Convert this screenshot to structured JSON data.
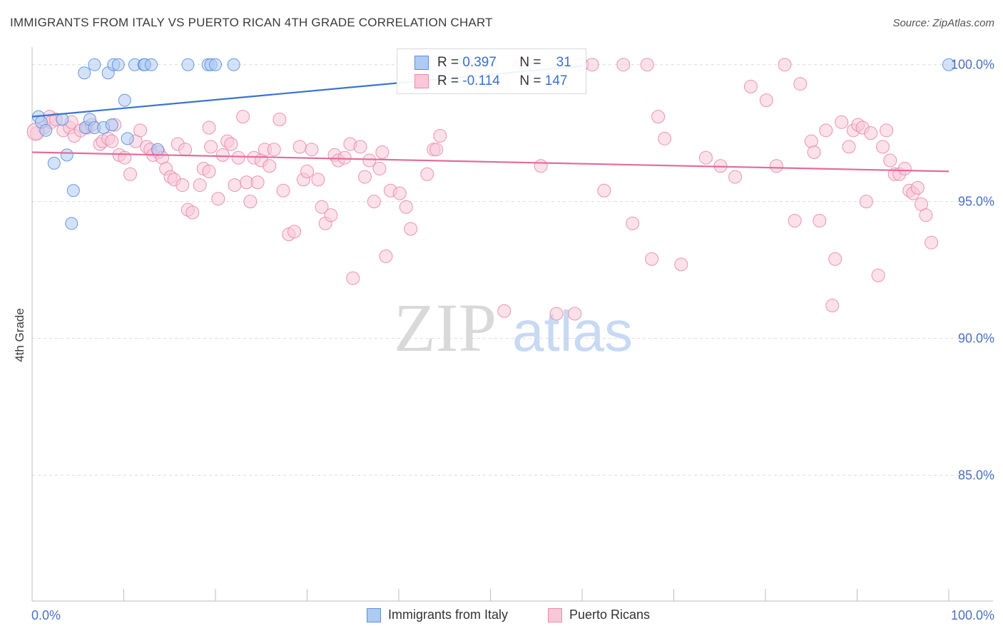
{
  "header": {
    "title": "IMMIGRANTS FROM ITALY VS PUERTO RICAN 4TH GRADE CORRELATION CHART",
    "source": "Source: ZipAtlas.com"
  },
  "watermark": {
    "zip": "ZIP",
    "atlas": "atlas"
  },
  "legend": {
    "rows": [
      {
        "r_label": "R =",
        "r_value": "0.397",
        "n_label": "N =",
        "n_value": "31",
        "fill": "#aecbf3",
        "stroke": "#5b8fe0"
      },
      {
        "r_label": "R =",
        "r_value": "-0.114",
        "n_label": "N =",
        "n_value": "147",
        "fill": "#f8c8d8",
        "stroke": "#e98aa8"
      }
    ]
  },
  "bottom_legend": [
    {
      "label": "Immigrants from Italy",
      "fill": "#aecbf3",
      "stroke": "#5b8fe0"
    },
    {
      "label": "Puerto Ricans",
      "fill": "#f8c8d8",
      "stroke": "#e98aa8"
    }
  ],
  "chart_data": {
    "type": "scatter",
    "xlabel": "",
    "ylabel": "4th Grade",
    "x_tick_labels": [
      "0.0%",
      "100.0%"
    ],
    "y_tick_labels": [
      "100.0%",
      "95.0%",
      "90.0%",
      "85.0%"
    ],
    "y_ticks": [
      100,
      95,
      90,
      85
    ],
    "xlim": [
      0,
      100
    ],
    "ylim": [
      80.4,
      100.8
    ],
    "grid": true,
    "colors": {
      "blue": "#3a74d0",
      "pink": "#e36c99",
      "blue_fill": "#aecbf3",
      "pink_fill": "#f8c8d8"
    },
    "series": [
      {
        "name": "Immigrants from Italy",
        "trend": {
          "x": [
            0,
            60
          ],
          "y": [
            98.1,
            99.95
          ]
        },
        "points": [
          [
            0.7,
            98.1
          ],
          [
            1.0,
            97.9
          ],
          [
            1.5,
            97.6
          ],
          [
            2.4,
            96.4
          ],
          [
            3.3,
            98.0
          ],
          [
            3.8,
            96.7
          ],
          [
            4.5,
            95.4
          ],
          [
            4.3,
            94.2
          ],
          [
            5.8,
            97.7
          ],
          [
            6.3,
            98.0
          ],
          [
            6.8,
            97.7
          ],
          [
            5.7,
            99.7
          ],
          [
            6.8,
            100.0
          ],
          [
            7.8,
            97.7
          ],
          [
            8.3,
            99.7
          ],
          [
            8.7,
            97.8
          ],
          [
            8.9,
            100.0
          ],
          [
            9.4,
            100.0
          ],
          [
            10.1,
            98.7
          ],
          [
            10.4,
            97.3
          ],
          [
            11.2,
            100.0
          ],
          [
            12.2,
            100.0
          ],
          [
            12.3,
            100.0
          ],
          [
            13.0,
            100.0
          ],
          [
            13.7,
            96.9
          ],
          [
            17.0,
            100.0
          ],
          [
            19.2,
            100.0
          ],
          [
            19.5,
            100.0
          ],
          [
            20.0,
            100.0
          ],
          [
            22.0,
            100.0
          ],
          [
            100.0,
            100.0
          ]
        ]
      },
      {
        "name": "Puerto Ricans",
        "trend": {
          "x": [
            0,
            100
          ],
          "y": [
            96.8,
            96.1
          ]
        },
        "points": [
          [
            0.5,
            97.5
          ],
          [
            1.3,
            97.7
          ],
          [
            1.9,
            98.1
          ],
          [
            2.1,
            97.9
          ],
          [
            2.6,
            98.0
          ],
          [
            3.4,
            97.6
          ],
          [
            4.1,
            97.7
          ],
          [
            4.3,
            97.9
          ],
          [
            4.6,
            97.4
          ],
          [
            5.3,
            97.6
          ],
          [
            6.0,
            97.7
          ],
          [
            6.5,
            97.8
          ],
          [
            7.4,
            97.1
          ],
          [
            7.7,
            97.2
          ],
          [
            8.3,
            97.3
          ],
          [
            8.7,
            97.2
          ],
          [
            9.0,
            97.8
          ],
          [
            9.5,
            96.7
          ],
          [
            10.1,
            96.6
          ],
          [
            10.7,
            96.0
          ],
          [
            11.3,
            97.2
          ],
          [
            11.8,
            97.6
          ],
          [
            12.5,
            97.0
          ],
          [
            12.9,
            96.9
          ],
          [
            13.2,
            96.7
          ],
          [
            13.8,
            96.8
          ],
          [
            14.2,
            96.6
          ],
          [
            14.6,
            96.2
          ],
          [
            15.1,
            95.9
          ],
          [
            15.5,
            95.8
          ],
          [
            15.9,
            97.1
          ],
          [
            16.4,
            95.6
          ],
          [
            16.7,
            96.9
          ],
          [
            17.0,
            94.7
          ],
          [
            17.5,
            94.6
          ],
          [
            18.3,
            95.6
          ],
          [
            18.7,
            96.2
          ],
          [
            19.3,
            97.7
          ],
          [
            19.5,
            97.0
          ],
          [
            20.3,
            95.1
          ],
          [
            20.8,
            96.7
          ],
          [
            21.3,
            97.2
          ],
          [
            21.7,
            97.1
          ],
          [
            22.1,
            95.6
          ],
          [
            22.5,
            96.6
          ],
          [
            23.0,
            98.1
          ],
          [
            23.4,
            95.7
          ],
          [
            23.8,
            95.0
          ],
          [
            24.2,
            96.6
          ],
          [
            24.6,
            95.7
          ],
          [
            25.0,
            96.5
          ],
          [
            25.4,
            96.9
          ],
          [
            25.9,
            96.3
          ],
          [
            26.4,
            96.9
          ],
          [
            27.0,
            98.0
          ],
          [
            27.4,
            95.4
          ],
          [
            28.0,
            93.8
          ],
          [
            28.6,
            93.9
          ],
          [
            29.2,
            97.0
          ],
          [
            29.6,
            95.8
          ],
          [
            30.0,
            96.1
          ],
          [
            30.5,
            96.9
          ],
          [
            31.2,
            95.8
          ],
          [
            31.6,
            94.8
          ],
          [
            32.0,
            94.2
          ],
          [
            32.6,
            94.5
          ],
          [
            33.0,
            96.7
          ],
          [
            33.4,
            96.5
          ],
          [
            34.1,
            96.6
          ],
          [
            34.7,
            97.1
          ],
          [
            35.0,
            92.2
          ],
          [
            35.8,
            97.0
          ],
          [
            36.3,
            95.9
          ],
          [
            36.8,
            96.5
          ],
          [
            37.3,
            95.0
          ],
          [
            37.9,
            96.2
          ],
          [
            38.2,
            96.8
          ],
          [
            38.6,
            93.0
          ],
          [
            39.1,
            95.4
          ],
          [
            40.1,
            95.3
          ],
          [
            40.8,
            94.8
          ],
          [
            41.3,
            94.0
          ],
          [
            42.0,
            100.0
          ],
          [
            42.6,
            100.0
          ],
          [
            43.1,
            96.0
          ],
          [
            43.8,
            96.9
          ],
          [
            44.1,
            96.9
          ],
          [
            44.5,
            97.4
          ],
          [
            45.2,
            100.0
          ],
          [
            46.0,
            100.0
          ],
          [
            47.0,
            100.0
          ],
          [
            48.4,
            100.0
          ],
          [
            50.0,
            100.0
          ],
          [
            51.5,
            91.0
          ],
          [
            53.4,
            100.0
          ],
          [
            53.8,
            100.0
          ],
          [
            55.5,
            96.3
          ],
          [
            57.2,
            90.9
          ],
          [
            59.2,
            90.9
          ],
          [
            60.0,
            100.0
          ],
          [
            61.1,
            100.0
          ],
          [
            62.4,
            95.4
          ],
          [
            64.5,
            100.0
          ],
          [
            65.5,
            94.2
          ],
          [
            67.1,
            100.0
          ],
          [
            67.6,
            92.9
          ],
          [
            68.3,
            98.1
          ],
          [
            69.0,
            97.3
          ],
          [
            70.8,
            92.7
          ],
          [
            73.5,
            96.6
          ],
          [
            75.1,
            96.3
          ],
          [
            76.7,
            95.9
          ],
          [
            78.4,
            99.2
          ],
          [
            80.1,
            98.7
          ],
          [
            81.2,
            96.3
          ],
          [
            82.1,
            100.0
          ],
          [
            83.2,
            94.3
          ],
          [
            83.8,
            99.3
          ],
          [
            85.0,
            97.2
          ],
          [
            85.3,
            96.8
          ],
          [
            85.9,
            94.3
          ],
          [
            86.6,
            97.6
          ],
          [
            87.3,
            91.2
          ],
          [
            87.6,
            92.9
          ],
          [
            88.3,
            97.9
          ],
          [
            89.1,
            97.0
          ],
          [
            89.6,
            97.6
          ],
          [
            90.1,
            97.8
          ],
          [
            90.6,
            97.7
          ],
          [
            91.0,
            95.0
          ],
          [
            91.5,
            97.5
          ],
          [
            92.3,
            92.3
          ],
          [
            92.8,
            97.0
          ],
          [
            93.2,
            97.6
          ],
          [
            93.6,
            96.5
          ],
          [
            94.1,
            96.0
          ],
          [
            94.6,
            96.0
          ],
          [
            95.2,
            96.2
          ],
          [
            95.7,
            95.4
          ],
          [
            96.1,
            95.3
          ],
          [
            96.6,
            95.5
          ],
          [
            97.0,
            94.9
          ],
          [
            97.5,
            94.5
          ],
          [
            98.1,
            93.5
          ],
          [
            19.3,
            96.1
          ]
        ]
      }
    ]
  }
}
